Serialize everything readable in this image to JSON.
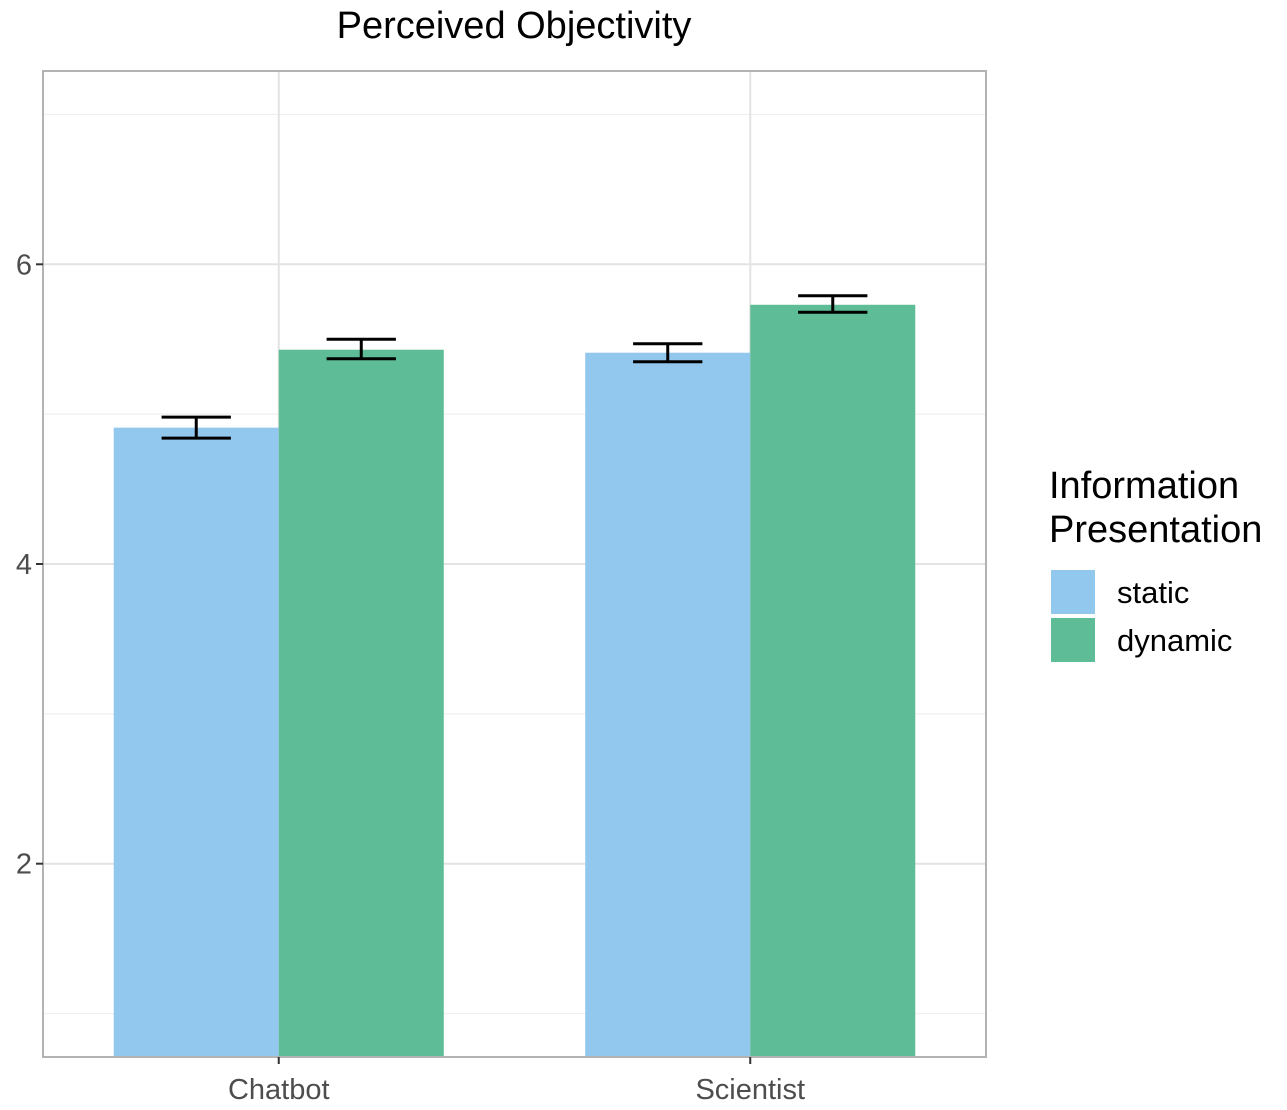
{
  "chart_data": {
    "type": "bar",
    "title": "Perceived Objectivity",
    "xlabel": "",
    "ylabel": "",
    "categories": [
      "Chatbot",
      "Scientist"
    ],
    "series": [
      {
        "name": "static",
        "color": "#93c8ee",
        "values": [
          4.91,
          5.41
        ],
        "error": [
          [
            4.84,
            4.98
          ],
          [
            5.35,
            5.47
          ]
        ]
      },
      {
        "name": "dynamic",
        "color": "#5ebd96",
        "values": [
          5.43,
          5.73
        ],
        "error": [
          [
            5.37,
            5.5
          ],
          [
            5.68,
            5.79
          ]
        ]
      }
    ],
    "ylim": [
      0.71,
      7.29
    ],
    "y_ticks": [
      2,
      4,
      6
    ],
    "y_tick_labels": [
      "2",
      "4",
      "6"
    ],
    "grid": true,
    "legend": {
      "title_lines": [
        "Information",
        "Presentation"
      ],
      "position": "right"
    }
  }
}
